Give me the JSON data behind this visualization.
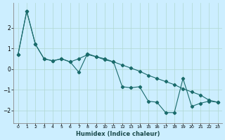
{
  "xlabel": "Humidex (Indice chaleur)",
  "bg_color": "#cceeff",
  "grid_color": "#aaddcc",
  "line_color": "#1a6b6b",
  "xlim": [
    -0.5,
    23.5
  ],
  "ylim": [
    -2.6,
    3.2
  ],
  "xticks": [
    0,
    1,
    2,
    3,
    4,
    5,
    6,
    7,
    8,
    9,
    10,
    11,
    12,
    13,
    14,
    15,
    16,
    17,
    18,
    19,
    20,
    21,
    22,
    23
  ],
  "yticks": [
    -2,
    -1,
    0,
    1,
    2
  ],
  "line1_x": [
    0,
    1,
    2,
    3,
    4,
    5,
    6,
    7,
    8,
    9,
    10,
    11,
    12,
    13,
    14,
    15,
    16,
    17,
    18,
    19,
    20,
    21,
    22,
    23
  ],
  "line1_y": [
    0.7,
    2.8,
    1.2,
    0.5,
    0.4,
    0.5,
    0.35,
    0.5,
    0.7,
    0.6,
    0.5,
    0.35,
    0.2,
    0.05,
    -0.1,
    -0.3,
    -0.45,
    -0.6,
    -0.75,
    -0.95,
    -1.1,
    -1.25,
    -1.5,
    -1.6
  ],
  "line2_x": [
    0,
    1,
    2,
    3,
    4,
    5,
    6,
    7,
    8,
    9,
    10,
    11,
    12,
    13,
    14,
    15,
    16,
    17,
    18,
    19,
    20,
    21,
    22,
    23
  ],
  "line2_y": [
    0.7,
    2.8,
    1.2,
    0.5,
    0.4,
    0.5,
    0.35,
    -0.15,
    0.75,
    0.6,
    0.45,
    0.35,
    -0.85,
    -0.9,
    -0.85,
    -1.55,
    -1.6,
    -2.1,
    -2.1,
    -0.45,
    -1.8,
    -1.65,
    -1.55,
    -1.6
  ]
}
